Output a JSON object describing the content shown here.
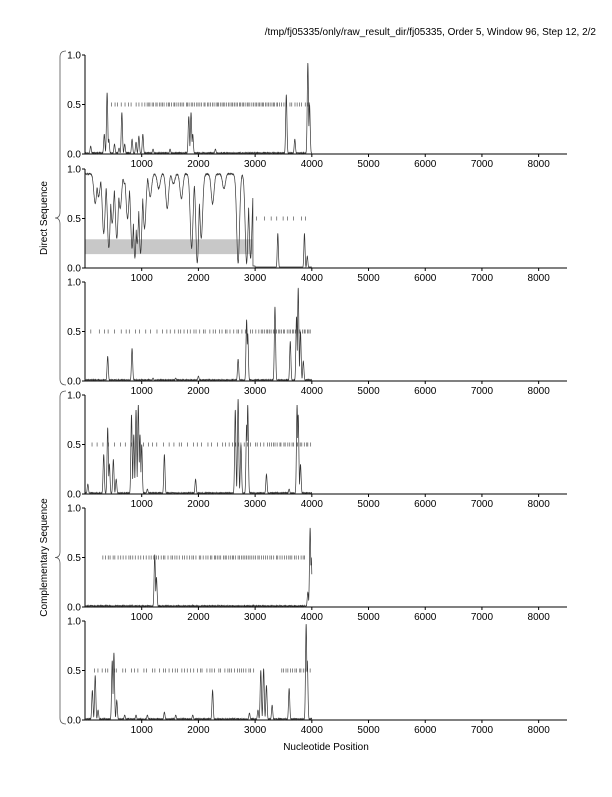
{
  "header": {
    "title": "/tmp/fj05335/only/raw_result_dir/fj05335, Order 5, Window 96, Step 12, 2/2"
  },
  "chart_data": {
    "type": "line",
    "xlabel": "Nucleotide Position",
    "xlim": [
      0,
      8500
    ],
    "x_ticks": [
      1000,
      2000,
      3000,
      4000,
      5000,
      6000,
      7000,
      8000
    ],
    "ylim": [
      0,
      1
    ],
    "y_ticks": [
      0.0,
      0.5,
      1.0
    ],
    "groups": [
      {
        "label": "Direct Sequence",
        "panels": [
          0,
          1,
          2
        ]
      },
      {
        "label": "Complementary Sequence",
        "panels": [
          3,
          4,
          5
        ]
      }
    ],
    "panels": [
      {
        "baseline": 0,
        "peaks": [
          [
            100,
            0.08
          ],
          [
            340,
            0.2
          ],
          [
            390,
            0.62
          ],
          [
            420,
            0.15
          ],
          [
            520,
            0.1
          ],
          [
            600,
            0.06
          ],
          [
            650,
            0.42
          ],
          [
            700,
            0.1
          ],
          [
            830,
            0.15
          ],
          [
            900,
            0.12
          ],
          [
            950,
            0.18
          ],
          [
            1020,
            0.2
          ],
          [
            1200,
            0.05
          ],
          [
            1500,
            0.05
          ],
          [
            1830,
            0.38
          ],
          [
            1870,
            0.42
          ],
          [
            1900,
            0.2
          ],
          [
            2300,
            0.05
          ],
          [
            3550,
            0.6
          ],
          [
            3700,
            0.15
          ],
          [
            3930,
            0.92
          ],
          [
            3960,
            0.5
          ]
        ],
        "coding_marks": [
          [
            450,
            1050,
            0.5,
            10
          ],
          [
            1050,
            2300,
            0.5,
            40
          ],
          [
            2300,
            3450,
            0.5,
            42
          ],
          [
            3450,
            4000,
            0.5,
            12
          ]
        ],
        "shaded": null
      },
      {
        "baseline": 0.95,
        "dips": [
          [
            180,
            0.65
          ],
          [
            240,
            0.72
          ],
          [
            330,
            0.35
          ],
          [
            420,
            0.2
          ],
          [
            480,
            0.45
          ],
          [
            560,
            0.3
          ],
          [
            620,
            0.6
          ],
          [
            700,
            0.85
          ],
          [
            750,
            0.5
          ],
          [
            830,
            0.2
          ],
          [
            880,
            0.1
          ],
          [
            920,
            0.25
          ],
          [
            980,
            0.15
          ],
          [
            1050,
            0.4
          ],
          [
            1150,
            0.72
          ],
          [
            1300,
            0.8
          ],
          [
            1450,
            0.6
          ],
          [
            1560,
            0.85
          ],
          [
            1700,
            0.7
          ],
          [
            1880,
            0.2
          ],
          [
            1980,
            0.05
          ],
          [
            2050,
            0.3
          ],
          [
            2250,
            0.65
          ],
          [
            2450,
            0.8
          ],
          [
            2700,
            0.05
          ],
          [
            2850,
            0.05
          ],
          [
            2920,
            0.1
          ]
        ],
        "after_peaks": [
          [
            3400,
            0.35
          ],
          [
            3870,
            0.35
          ],
          [
            3920,
            0.12
          ]
        ],
        "coding_marks": [
          [
            3000,
            4000,
            0.5,
            9
          ]
        ],
        "shaded": [
          0,
          2950,
          0.14,
          0.29
        ]
      },
      {
        "baseline": 0,
        "peaks": [
          [
            400,
            0.25
          ],
          [
            830,
            0.33
          ],
          [
            1200,
            0.03
          ],
          [
            1600,
            0.03
          ],
          [
            2000,
            0.05
          ],
          [
            2700,
            0.22
          ],
          [
            2850,
            0.62
          ],
          [
            2870,
            0.48
          ],
          [
            3350,
            0.75
          ],
          [
            3620,
            0.4
          ],
          [
            3730,
            0.65
          ],
          [
            3760,
            0.94
          ],
          [
            3800,
            0.5
          ],
          [
            3850,
            0.2
          ]
        ],
        "coding_marks": [
          [
            100,
            600,
            0.5,
            5
          ],
          [
            600,
            1500,
            0.5,
            10
          ],
          [
            1500,
            2400,
            0.5,
            16
          ],
          [
            2400,
            3100,
            0.5,
            14
          ],
          [
            3100,
            4000,
            0.5,
            30
          ]
        ],
        "shaded": null
      },
      {
        "baseline": 0,
        "peaks": [
          [
            50,
            0.1
          ],
          [
            330,
            0.4
          ],
          [
            400,
            0.67
          ],
          [
            430,
            0.3
          ],
          [
            500,
            0.35
          ],
          [
            550,
            0.15
          ],
          [
            820,
            0.8
          ],
          [
            860,
            0.6
          ],
          [
            900,
            0.85
          ],
          [
            940,
            0.9
          ],
          [
            970,
            0.6
          ],
          [
            1000,
            0.5
          ],
          [
            1100,
            0.05
          ],
          [
            1400,
            0.4
          ],
          [
            1950,
            0.15
          ],
          [
            2650,
            0.85
          ],
          [
            2700,
            0.96
          ],
          [
            2750,
            0.5
          ],
          [
            2850,
            0.7
          ],
          [
            2870,
            0.9
          ],
          [
            3200,
            0.2
          ],
          [
            3600,
            0.05
          ],
          [
            3740,
            0.9
          ],
          [
            3760,
            0.8
          ],
          [
            3800,
            0.3
          ]
        ],
        "coding_marks": [
          [
            100,
            1000,
            0.5,
            9
          ],
          [
            1000,
            2400,
            0.5,
            16
          ],
          [
            2400,
            3200,
            0.5,
            14
          ],
          [
            3200,
            4000,
            0.5,
            22
          ]
        ],
        "shaded": null
      },
      {
        "baseline": 0,
        "peaks": [
          [
            1230,
            0.53
          ],
          [
            1260,
            0.3
          ],
          [
            3930,
            0.15
          ],
          [
            3970,
            0.8
          ],
          [
            3990,
            0.5
          ]
        ],
        "coding_marks": [
          [
            300,
            1200,
            0.5,
            20
          ],
          [
            1200,
            2200,
            0.5,
            24
          ],
          [
            2200,
            3100,
            0.5,
            28
          ],
          [
            3100,
            3900,
            0.5,
            22
          ]
        ],
        "shaded": null
      },
      {
        "baseline": 0,
        "peaks": [
          [
            130,
            0.3
          ],
          [
            180,
            0.45
          ],
          [
            230,
            0.1
          ],
          [
            480,
            0.6
          ],
          [
            510,
            0.68
          ],
          [
            560,
            0.2
          ],
          [
            700,
            0.05
          ],
          [
            900,
            0.05
          ],
          [
            1100,
            0.05
          ],
          [
            1400,
            0.08
          ],
          [
            1600,
            0.05
          ],
          [
            1900,
            0.05
          ],
          [
            2250,
            0.3
          ],
          [
            2900,
            0.07
          ],
          [
            3050,
            0.1
          ],
          [
            3100,
            0.5
          ],
          [
            3150,
            0.52
          ],
          [
            3200,
            0.35
          ],
          [
            3300,
            0.15
          ],
          [
            3600,
            0.32
          ],
          [
            3900,
            0.97
          ],
          [
            3920,
            0.6
          ]
        ],
        "coding_marks": [
          [
            150,
            400,
            0.5,
            4
          ],
          [
            400,
            1300,
            0.5,
            12
          ],
          [
            1300,
            2500,
            0.5,
            22
          ],
          [
            2500,
            3000,
            0.5,
            12
          ],
          [
            3450,
            4000,
            0.5,
            14
          ]
        ],
        "shaded": null
      }
    ]
  }
}
